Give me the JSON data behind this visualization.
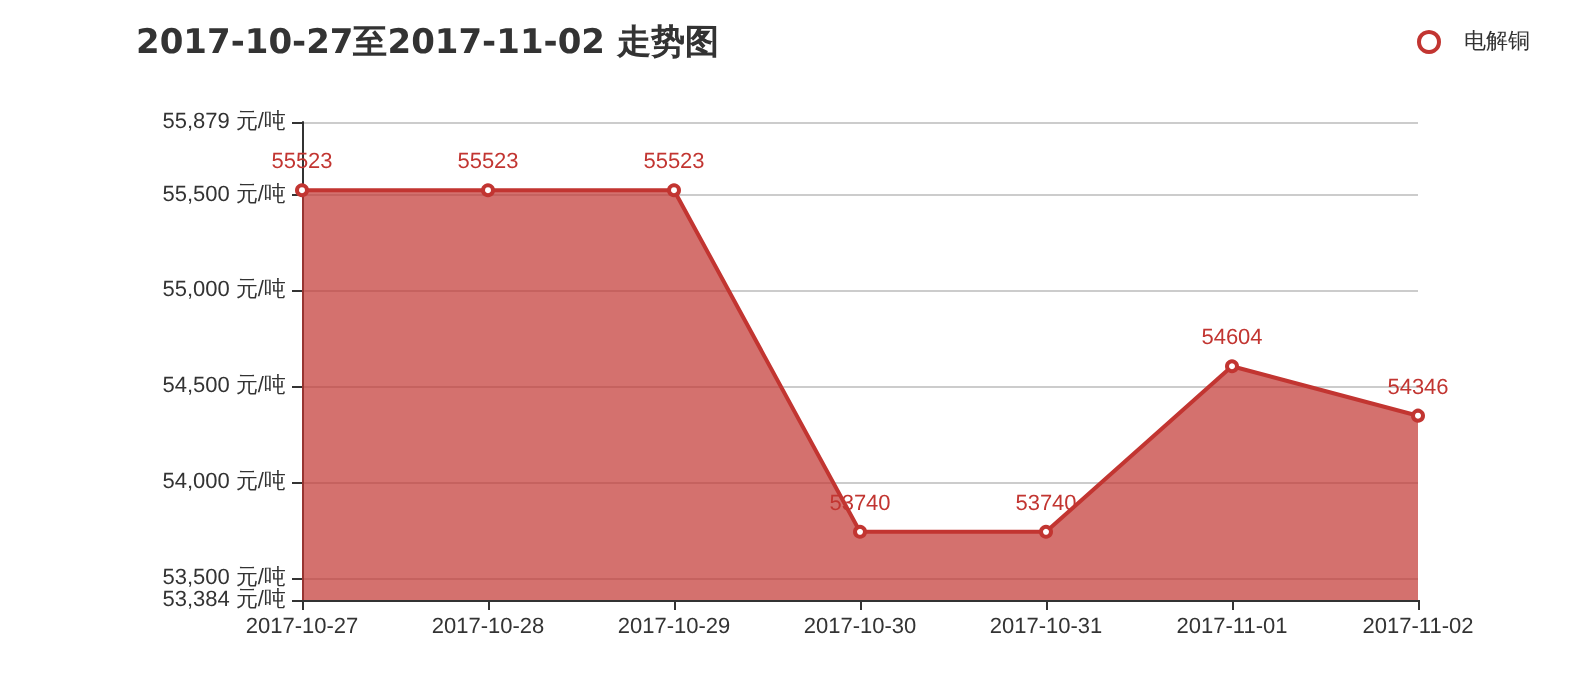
{
  "chart_data": {
    "type": "area",
    "title": "2017-10-27至2017-11-02 走势图",
    "categories": [
      "2017-10-27",
      "2017-10-28",
      "2017-10-29",
      "2017-10-30",
      "2017-10-31",
      "2017-11-01",
      "2017-11-02"
    ],
    "series": [
      {
        "name": "电解铜",
        "color": "#c23531",
        "values": [
          55523,
          55523,
          55523,
          53740,
          53740,
          54604,
          54346
        ]
      }
    ],
    "ylim": [
      53384,
      55879
    ],
    "yticks": [
      {
        "value": 53384,
        "label": "53,384 元/吨"
      },
      {
        "value": 53500,
        "label": "53,500 元/吨"
      },
      {
        "value": 54000,
        "label": "54,000 元/吨"
      },
      {
        "value": 54500,
        "label": "54,500 元/吨"
      },
      {
        "value": 55000,
        "label": "55,000 元/吨"
      },
      {
        "value": 55500,
        "label": "55,500 元/吨"
      },
      {
        "value": 55879,
        "label": "55,879 元/吨"
      }
    ],
    "grid": "y",
    "legend": "top right",
    "marker": "circle",
    "data_labels": true
  }
}
